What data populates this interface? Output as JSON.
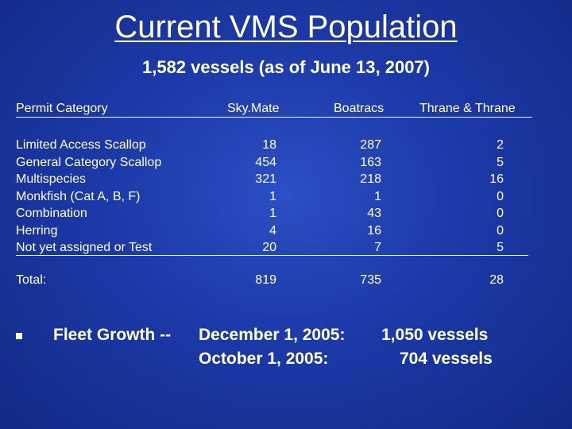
{
  "title": "Current VMS Population",
  "subtitle": "1,582 vessels (as of June 13, 2007)",
  "table": {
    "headers": [
      "Permit Category",
      "Sky.Mate",
      "Boatracs",
      "Thrane & Thrane"
    ],
    "rows": [
      {
        "category": "Limited Access Scallop",
        "skymate": "18",
        "boatracs": "287",
        "thrane": "2"
      },
      {
        "category": "General Category Scallop",
        "skymate": "454",
        "boatracs": "163",
        "thrane": "5"
      },
      {
        "category": "Multispecies",
        "skymate": "321",
        "boatracs": "218",
        "thrane": "16"
      },
      {
        "category": "Monkfish (Cat A, B, F)",
        "skymate": "1",
        "boatracs": "1",
        "thrane": "0"
      },
      {
        "category": "Combination",
        "skymate": "1",
        "boatracs": "43",
        "thrane": "0"
      },
      {
        "category": "Herring",
        "skymate": "4",
        "boatracs": "16",
        "thrane": "0"
      },
      {
        "category": "Not yet assigned or Test",
        "skymate": "20",
        "boatracs": "7",
        "thrane": "5"
      }
    ],
    "total": {
      "label": "Total:",
      "skymate": "819",
      "boatracs": "735",
      "thrane": "28"
    }
  },
  "fleet_growth": {
    "label": "Fleet Growth --",
    "line1_date": "December 1, 2005:",
    "line1_value": "1,050 vessels",
    "line2_date": "October 1, 2005:",
    "line2_value": "704 vessels"
  }
}
